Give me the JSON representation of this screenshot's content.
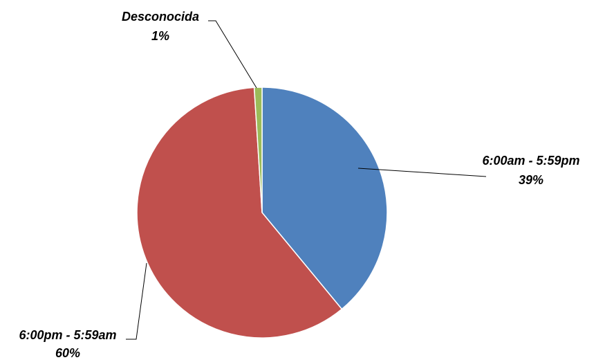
{
  "chart_data": {
    "type": "pie",
    "title": "",
    "categories": [
      "6:00am - 5:59pm",
      "6:00pm - 5:59am",
      "Desconocida"
    ],
    "values": [
      39,
      60,
      1
    ],
    "labels": [
      {
        "name": "6:00am - 5:59pm",
        "percent": "39%"
      },
      {
        "name": "6:00pm - 5:59am",
        "percent": "60%"
      },
      {
        "name": "Desconocida",
        "percent": "1%"
      }
    ],
    "colors": [
      "#4F81BD",
      "#C0504D",
      "#9BBB59"
    ],
    "legend": "none",
    "data_labels": "outside-with-leader-lines"
  }
}
